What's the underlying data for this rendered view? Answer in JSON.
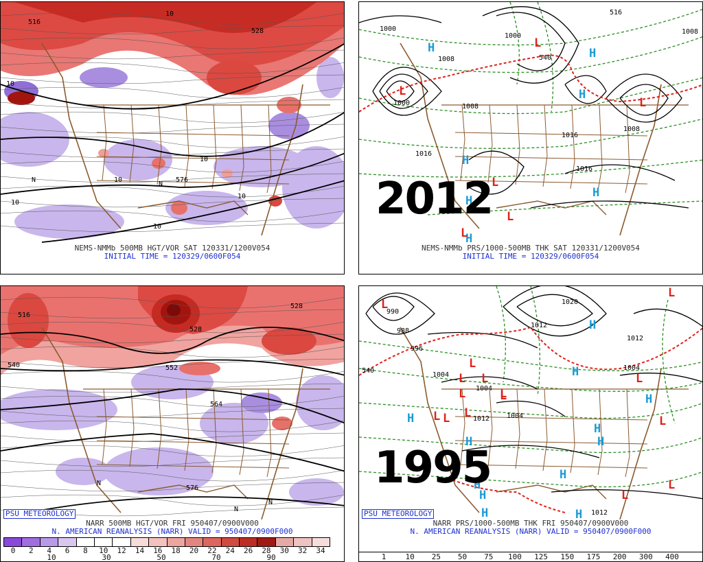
{
  "panels": {
    "top_left": {
      "caption1": "NEMS-NMMb 500MB HGT/VOR SAT 120331/1200V054",
      "caption2": "INITIAL TIME = 120329/0600F054",
      "contour_labels": [
        "516",
        "528",
        "10",
        "10",
        "10",
        "10",
        "10",
        "576",
        "10",
        "N",
        "N",
        "10"
      ]
    },
    "top_right": {
      "year": "2012",
      "caption1": "NEMS-NMMb PRS/1000-500MB THK SAT 120331/1200V054",
      "caption2": "INITIAL TIME = 120329/0600F054",
      "contour_labels": [
        "1000",
        "1000",
        "1008",
        "1000",
        "1008",
        "1016",
        "1016",
        "1016",
        "1008",
        "1008",
        "540",
        "516"
      ]
    },
    "bottom_left": {
      "caption1": "NARR 500MB HGT/VOR FRI 950407/0900V000",
      "caption2": "N. AMERICAN REANALYSIS (NARR) VALID = 950407/0900F000",
      "contour_labels": [
        "516",
        "540",
        "528",
        "528",
        "552",
        "564",
        "576",
        "N",
        "N",
        "N"
      ]
    },
    "bottom_right": {
      "year": "1995",
      "caption1": "NARR PRS/1000-500MB THK FRI 950407/0900V000",
      "caption2": "N. AMERICAN REANALYSIS (NARR) VALID = 950407/0900F000",
      "contour_labels": [
        "990",
        "988",
        "996",
        "1020",
        "1012",
        "1004",
        "1004",
        "1012",
        "1004",
        "1012",
        "1004",
        "1012",
        "540"
      ]
    }
  },
  "badge": "PSU METEOROLOGY",
  "vorticity_scale": {
    "upper_ticks": [
      "0",
      "2",
      "4",
      "6",
      "8",
      "10",
      "12",
      "14",
      "16",
      "18",
      "20",
      "22",
      "24",
      "26",
      "28",
      "30",
      "32",
      "34"
    ],
    "lower_ticks": [
      "10",
      "30",
      "50",
      "70",
      "90"
    ]
  },
  "precip_scale": {
    "ticks": [
      "1",
      "10",
      "25",
      "50",
      "75",
      "100",
      "125",
      "150",
      "175",
      "200",
      "300",
      "400"
    ]
  },
  "symbols": {
    "high": "H",
    "low": "L"
  },
  "colors": {
    "vort_pos": [
      "#f4c6c4",
      "#ef9e9a",
      "#e8706b",
      "#db4840",
      "#c52a23",
      "#a2150f",
      "#7a0b08"
    ],
    "vort_neg": [
      "#c8b6ec",
      "#a98ee0",
      "#8f6fd6"
    ],
    "high_symbol": "#1a9ad6",
    "low_symbol": "#e0201a",
    "thickness_dash": "#2a8f22",
    "freezing_dash": "#e0201a",
    "isobar": "#000000",
    "borders": "#8a5a2e",
    "caption_blue": "#1d2fd0"
  }
}
